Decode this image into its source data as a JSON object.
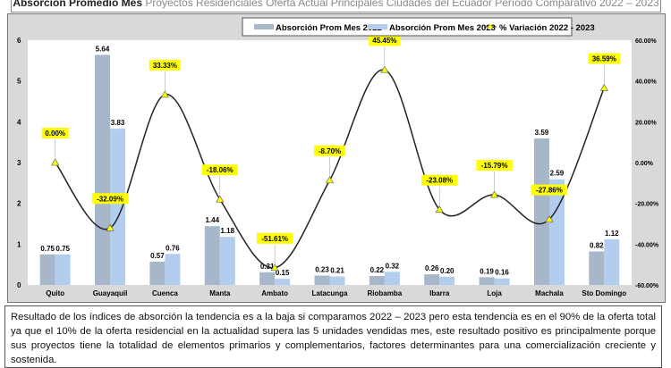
{
  "title": {
    "bold": "Absorción Promedio Mes",
    "rest": " Proyectos Residenciales Oferta Actual Principales Ciudades del Ecuador Período Comparativo 2022 – 2023"
  },
  "description": "Resultado de los índices de absorción la tendencia es a la baja si comparamos 2022 – 2023 pero esta tendencia es en el 90% de la oferta total ya que el 10% de la oferta residencial en la actualidad supera las 5 unidades vendidas mes, este resultado positivo es principalmente porque sus proyectos tiene la totalidad de elementos primarios y complementarios, factores determinantes para una comercialización creciente y sostenida.",
  "chart_data": {
    "type": "bar+line",
    "categories": [
      "Quito",
      "Guayaquil",
      "Cuenca",
      "Manta",
      "Ambato",
      "Latacunga",
      "Riobamba",
      "Ibarra",
      "Loja",
      "Machala",
      "Sto Domingo"
    ],
    "series": [
      {
        "name": "Absorción Prom Mes 2022",
        "type": "bar",
        "axis": "left",
        "color": "#a7b6c8",
        "values": [
          0.75,
          5.64,
          0.57,
          1.44,
          0.31,
          0.23,
          0.22,
          0.26,
          0.19,
          3.59,
          0.82
        ]
      },
      {
        "name": "Absorción Prom Mes 2023",
        "type": "bar",
        "axis": "left",
        "color": "#b3cdef",
        "values": [
          0.75,
          3.83,
          0.76,
          1.18,
          0.15,
          0.21,
          0.32,
          0.2,
          0.16,
          2.59,
          1.12
        ]
      },
      {
        "name": "% Variación 2022 - 2023",
        "type": "line",
        "axis": "right",
        "color": "#222222",
        "marker_color": "#ffff00",
        "values": [
          0.0,
          -32.09,
          33.33,
          -18.06,
          -51.61,
          -8.7,
          45.45,
          -23.08,
          -15.79,
          -27.86,
          36.59
        ],
        "labels": [
          "0.00%",
          "-32.09%",
          "33.33%",
          "-18.06%",
          "-51.61%",
          "-8.70%",
          "45.45%",
          "-23.08%",
          "-15.79%",
          "-27.86%",
          "36.59%"
        ]
      }
    ],
    "left_axis": {
      "range": [
        0,
        6
      ],
      "ticks": [
        "0",
        "1",
        "2",
        "3",
        "4",
        "5",
        "6"
      ]
    },
    "right_axis": {
      "range": [
        -60,
        60
      ],
      "ticks": [
        "-60.00%",
        "-40.00%",
        "-20.00%",
        "0.00%",
        "20.00%",
        "40.00%",
        "60.00%"
      ]
    },
    "legend_position": "top",
    "grid": false
  }
}
